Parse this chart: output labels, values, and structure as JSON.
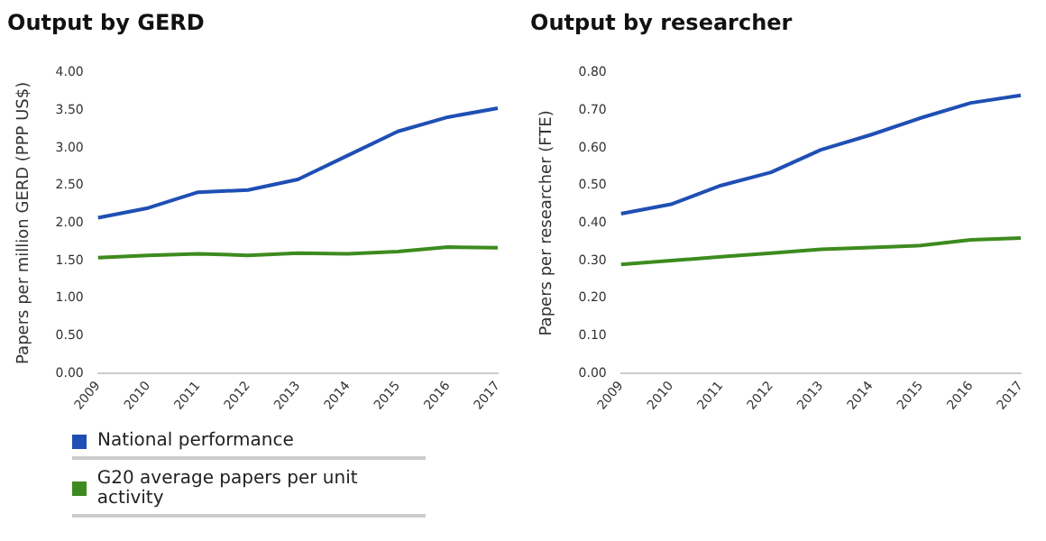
{
  "chart_data": [
    {
      "type": "line",
      "title": "Output by GERD",
      "ylabel": "Papers per million GERD (PPP US$)",
      "categories": [
        "2009",
        "2010",
        "2011",
        "2012",
        "2013",
        "2014",
        "2015",
        "2016",
        "2017"
      ],
      "series": [
        {
          "name": "National performance",
          "color": "#1f4fb4",
          "values": [
            2.07,
            2.2,
            2.41,
            2.44,
            2.58,
            2.9,
            3.22,
            3.41,
            3.53
          ]
        },
        {
          "name": "G20 average papers per unit activity",
          "color": "#3d8b1f",
          "values": [
            1.54,
            1.57,
            1.59,
            1.57,
            1.6,
            1.59,
            1.62,
            1.68,
            1.67
          ]
        }
      ],
      "ylim": [
        0,
        4
      ],
      "yticks": [
        {
          "value": 0,
          "label": "0.00"
        },
        {
          "value": 0.5,
          "label": "0.50"
        },
        {
          "value": 1,
          "label": "1.00"
        },
        {
          "value": 1.5,
          "label": "1.50"
        },
        {
          "value": 2,
          "label": "2.00"
        },
        {
          "value": 2.5,
          "label": "2.50"
        },
        {
          "value": 3,
          "label": "3.00"
        },
        {
          "value": 3.5,
          "label": "3.50"
        },
        {
          "value": 4,
          "label": "4.00"
        }
      ],
      "legend": "bottom",
      "marker": "none"
    },
    {
      "type": "line",
      "title": "Output by researcher",
      "ylabel": "Papers per researcher (FTE)",
      "categories": [
        "2009",
        "2010",
        "2011",
        "2012",
        "2013",
        "2014",
        "2015",
        "2016",
        "2017"
      ],
      "series": [
        {
          "color": "#1f4fb4",
          "values": [
            0.425,
            0.45,
            0.5,
            0.535,
            0.595,
            0.635,
            0.68,
            0.72,
            0.74
          ]
        },
        {
          "color": "#3d8b1f",
          "values": [
            0.29,
            0.3,
            0.31,
            0.32,
            0.33,
            0.335,
            0.34,
            0.355,
            0.36
          ]
        }
      ],
      "ylim": [
        0,
        0.8
      ],
      "yticks": [
        {
          "value": 0,
          "label": "0.00"
        },
        {
          "value": 0.1,
          "label": "0.10"
        },
        {
          "value": 0.2,
          "label": "0.20"
        },
        {
          "value": 0.3,
          "label": "0.30"
        },
        {
          "value": 0.4,
          "label": "0.40"
        },
        {
          "value": 0.5,
          "label": "0.50"
        },
        {
          "value": 0.6,
          "label": "0.60"
        },
        {
          "value": 0.7,
          "label": "0.70"
        },
        {
          "value": 0.8,
          "label": "0.80"
        }
      ],
      "marker": "none"
    }
  ]
}
